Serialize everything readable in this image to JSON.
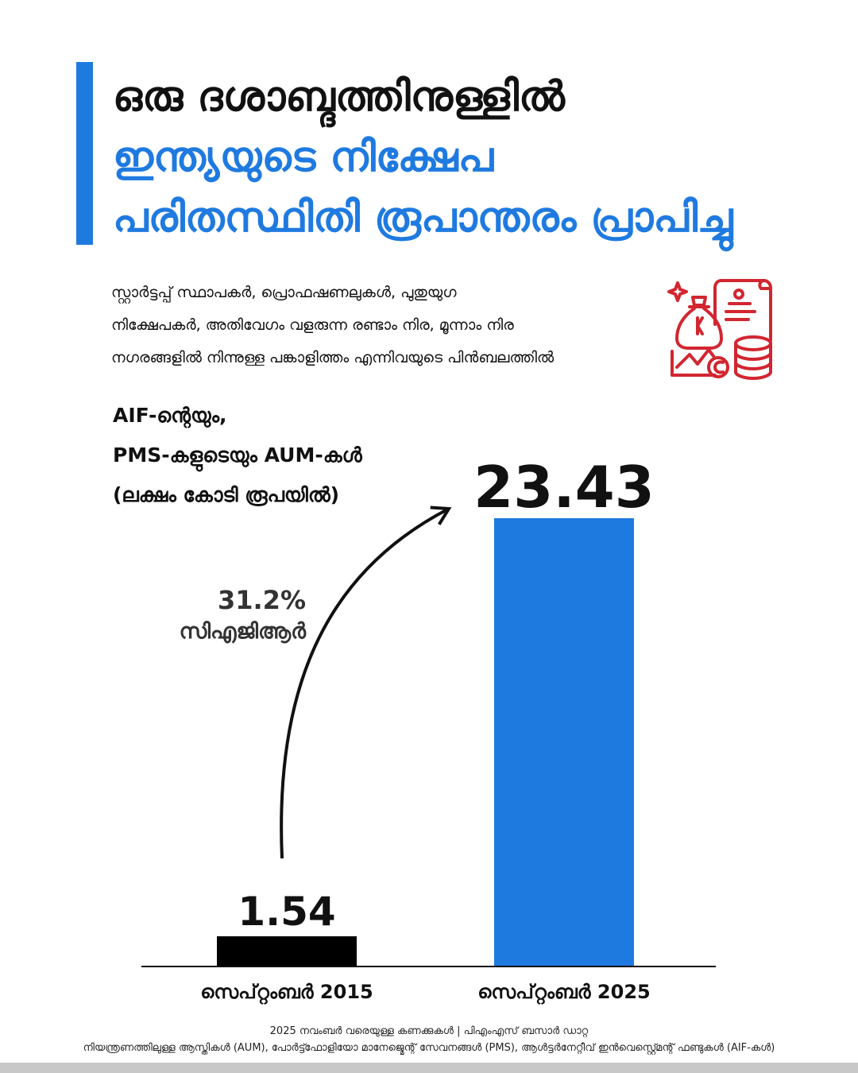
{
  "heading": {
    "line1": "ഒരു ദശാബ്ദത്തിനുള്ളിൽ",
    "line2": "ഇന്ത്യയുടെ നിക്ഷേപ",
    "line3": "പരിതസ്ഥിതി രൂപാന്തരം പ്രാപിച്ചു"
  },
  "subheading": {
    "line1": "സ്റ്റാർട്ടപ്പ് സ്ഥാപകർ, പ്രൊഫഷണലുകൾ, പുതുയുഗ",
    "line2": "നിക്ഷേപകർ, അതിവേഗം വളരുന്ന രണ്ടാം നിര, മൂന്നാം നിര",
    "line3": "നഗരങ്ങളിൽ നിന്നുള്ള പങ്കാളിത്തം എന്നിവയുടെ പിൻബലത്തിൽ"
  },
  "icon": "finance-documents-coins-icon",
  "colors": {
    "accent": "#1f7ae0",
    "bar_2015": "#000000",
    "bar_2025": "#1f7ae0",
    "icon": "#d22630"
  },
  "growth": {
    "value": "31.2%",
    "label": "സിഎജിആർ"
  },
  "chart_data": {
    "type": "bar",
    "title": "",
    "ylabel_lines": [
      "AIF-ന്റെയും,",
      "PMS-കളുടെയും AUM-കൾ",
      "(ലക്ഷം കോടി രൂപയിൽ)"
    ],
    "categories": [
      "സെപ്റ്റംബർ 2015",
      "സെപ്റ്റംബർ 2025"
    ],
    "values": [
      1.54,
      23.43
    ],
    "value_labels": [
      "1.54",
      "23.43"
    ],
    "ylim": [
      0,
      23.43
    ],
    "grid": false,
    "legend": "none",
    "annotation": "curved arrow from 2015 bar to 2025 bar"
  },
  "footer": {
    "line1": "2025 നവംബർ വരെയുള്ള കണക്കുകൾ  | പിഎംഎസ് ബസാർ ഡാറ്റ",
    "line2": "നിയന്ത്രണത്തിലുള്ള ആസ്തികൾ (AUM), പോർട്ട്ഫോളിയോ മാനേജ്മെന്റ് സേവനങ്ങൾ (PMS), ആൾട്ടർനേറ്റീവ് ഇൻവെസ്റ്റ്മെന്റ് ഫണ്ടുകൾ (AIF-കൾ)"
  }
}
